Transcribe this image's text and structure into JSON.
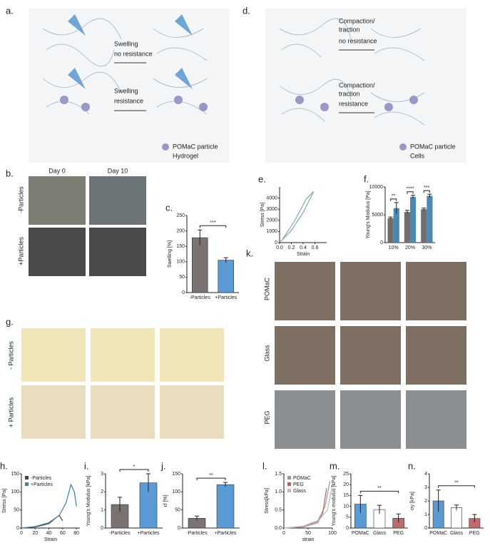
{
  "figure": {
    "a": {
      "label": "a.",
      "texts": [
        "Swelling",
        "no resistance",
        "Swelling",
        "resistance"
      ],
      "legend": [
        "POMaC particle",
        "Hydrogel"
      ]
    },
    "d": {
      "label": "d.",
      "texts": [
        "Compaction/",
        "traction",
        "no resistance",
        "Compaction/",
        "traction",
        "resistance"
      ],
      "legend": [
        "POMaC particle",
        "Cells"
      ]
    },
    "b": {
      "label": "b.",
      "columns": [
        "Day 0",
        "Day 10"
      ],
      "rows": [
        "-Particles",
        "+Particles"
      ]
    },
    "g": {
      "label": "g.",
      "rows": [
        "- Particles",
        "+ Particles"
      ]
    },
    "k": {
      "label": "k.",
      "rows": [
        "POMaC",
        "Glass",
        "PEG"
      ]
    }
  },
  "chart_data": [
    {
      "type": "bar",
      "panel": "c.",
      "categories": [
        "-Particles",
        "+Particles"
      ],
      "values": [
        178,
        105
      ],
      "errors": [
        25,
        8
      ],
      "colors": [
        "#7b7272",
        "#5b9bd5"
      ],
      "ylabel": "Swelling [%]",
      "ylim": [
        0,
        250
      ],
      "yticks": [
        0,
        50,
        100,
        150,
        200,
        250
      ],
      "significance": "***"
    },
    {
      "type": "line",
      "panel": "e.",
      "xlabel": "Strain",
      "ylabel": "Stress [Pa]",
      "xlim": [
        0,
        0.8
      ],
      "xticks": [
        {
          "value": 0,
          "label": "0.0"
        },
        {
          "value": 0.2,
          "label": "0.2"
        },
        {
          "value": 0.4,
          "label": "0.4"
        },
        {
          "value": 0.6,
          "label": "0.6"
        }
      ],
      "ylim": [
        0,
        5000
      ],
      "yticks": [
        0,
        1000,
        2000,
        3000,
        4000
      ],
      "series": [
        {
          "name": null,
          "color": "#7fa9b8",
          "x": [
            0,
            0.2,
            0.4,
            0.58,
            0.45,
            0.25,
            0.05
          ],
          "values": [
            0,
            1100,
            2700,
            4600,
            3900,
            1900,
            300
          ]
        }
      ]
    },
    {
      "type": "grouped-bar",
      "panel": "f.",
      "categories": [
        "10%",
        "20%",
        "30%"
      ],
      "ylabel": "Young's Modulus [Pa]",
      "ylim": [
        0,
        10000
      ],
      "yticks": [
        0,
        5000,
        10000
      ],
      "series": [
        {
          "name": null,
          "color": "#6f6f6f",
          "values": [
            4400,
            5500,
            6000
          ],
          "errors": [
            200,
            300,
            200
          ]
        },
        {
          "name": null,
          "color": "#4a89b0",
          "values": [
            6200,
            8200,
            8400
          ],
          "errors": [
            1000,
            300,
            300
          ]
        }
      ],
      "significance": [
        "**",
        "****",
        "***"
      ]
    },
    {
      "type": "line",
      "panel": "h.",
      "xlabel": "Strain",
      "ylabel": "Stress [Pa]",
      "xlim": [
        0,
        85
      ],
      "xticks": [
        0,
        20,
        40,
        60,
        80
      ],
      "ylim": [
        0,
        150
      ],
      "yticks": [
        0,
        50,
        100,
        150
      ],
      "series": [
        {
          "name": "-Particles",
          "color": "#444",
          "x": [
            0,
            20,
            40,
            50,
            55,
            60
          ],
          "values": [
            0,
            3,
            12,
            28,
            35,
            20
          ]
        },
        {
          "name": "+Particles",
          "color": "#3e7fa6",
          "x": [
            0,
            20,
            40,
            55,
            65,
            72,
            77,
            80
          ],
          "values": [
            0,
            4,
            15,
            35,
            70,
            120,
            100,
            60
          ]
        }
      ]
    },
    {
      "type": "bar",
      "panel": "i.",
      "categories": [
        "-Particles",
        "+Particles"
      ],
      "values": [
        1.3,
        2.5
      ],
      "errors": [
        0.4,
        0.5
      ],
      "colors": [
        "#7b7272",
        "#5b9bd5"
      ],
      "ylabel": "Young's Modulus [kPa]",
      "ylim": [
        0,
        3
      ],
      "yticks": [
        0,
        1,
        2,
        3
      ],
      "significance": "*"
    },
    {
      "type": "bar",
      "panel": "j.",
      "categories": [
        "-Particles",
        "+Particles"
      ],
      "values": [
        27,
        120
      ],
      "errors": [
        6,
        6
      ],
      "colors": [
        "#7b7272",
        "#5b9bd5"
      ],
      "ylabel": "εf [%]",
      "ylim": [
        0,
        150
      ],
      "yticks": [
        0,
        50,
        100,
        150
      ],
      "significance": "**"
    },
    {
      "type": "line",
      "panel": "l.",
      "xlabel": "strain",
      "ylabel": "Stress[kPa]",
      "xlim": [
        0,
        100
      ],
      "xticks": [
        0,
        50,
        100
      ],
      "ylim": [
        0,
        1.5
      ],
      "yticks": [
        {
          "value": 0,
          "label": "0.0"
        },
        {
          "value": 0.5,
          "label": "0.5"
        },
        {
          "value": 1,
          "label": "1.0"
        },
        {
          "value": 1.5,
          "label": "1.5"
        }
      ],
      "series": [
        {
          "name": "POMaC",
          "color": "#999",
          "x": [
            0,
            40,
            70,
            85,
            95
          ],
          "values": [
            0,
            0.05,
            0.2,
            0.6,
            1.3
          ]
        },
        {
          "name": "PEG",
          "color": "#c86060",
          "x": [
            0,
            40,
            70,
            80,
            88
          ],
          "values": [
            0,
            0.03,
            0.15,
            0.4,
            1.1
          ]
        },
        {
          "name": "Glass",
          "color": "#bbb",
          "x": [
            0,
            40,
            70,
            90,
            100
          ],
          "values": [
            0,
            0.04,
            0.18,
            0.5,
            1.2
          ]
        }
      ]
    },
    {
      "type": "bar",
      "panel": "m.",
      "categories": [
        "POMaC",
        "Glass",
        "PEG"
      ],
      "values": [
        11,
        8.5,
        4.5
      ],
      "errors": [
        4,
        2,
        2
      ],
      "colors": [
        "#5b9bd5",
        "#ffffff",
        "#c06b6b"
      ],
      "ylabel": "Young's modulus [kPa]",
      "ylim": [
        0,
        25
      ],
      "yticks": [
        0,
        5,
        10,
        15,
        20,
        25
      ],
      "significance": "**"
    },
    {
      "type": "bar",
      "panel": "n.",
      "categories": [
        "POMaC",
        "Glass",
        "PEG"
      ],
      "values": [
        2.0,
        1.5,
        0.7
      ],
      "errors": [
        0.8,
        0.2,
        0.3
      ],
      "colors": [
        "#5b9bd5",
        "#ffffff",
        "#c06b6b"
      ],
      "ylabel": "σy [kPa]",
      "ylim": [
        0,
        4
      ],
      "yticks": [
        0,
        1,
        2,
        3,
        4
      ],
      "significance": "**"
    }
  ]
}
